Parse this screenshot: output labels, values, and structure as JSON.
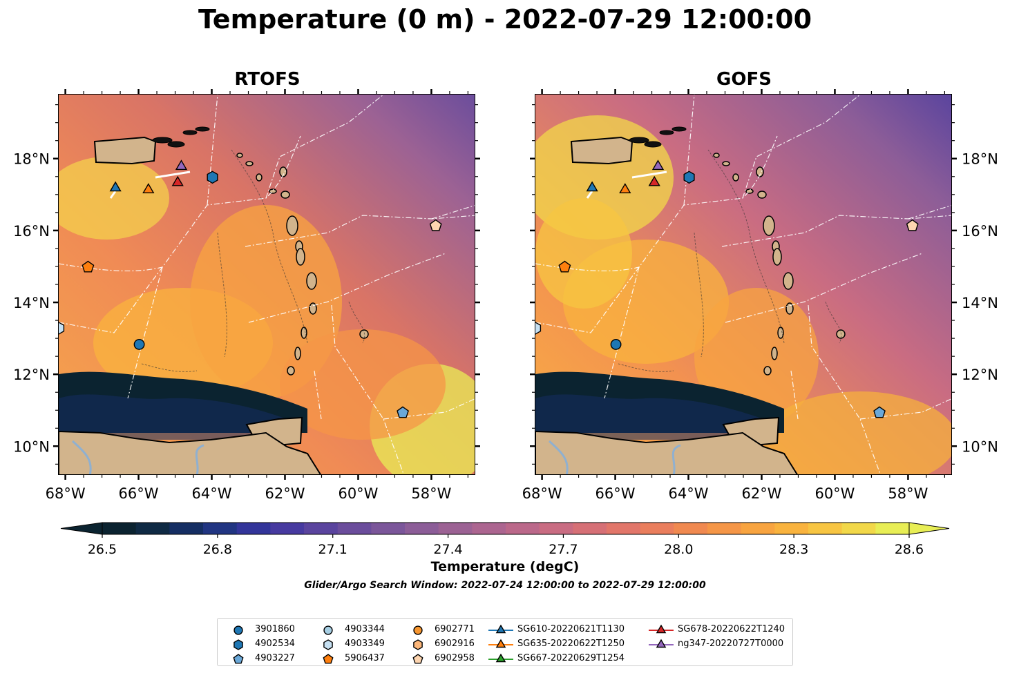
{
  "title": "Temperature (0 m) - 2022-07-29 12:00:00",
  "panels": [
    {
      "title": "RTOFS"
    },
    {
      "title": "GOFS"
    }
  ],
  "axes": {
    "lon_ticks": [
      "68°W",
      "66°W",
      "64°W",
      "62°W",
      "60°W",
      "58°W"
    ],
    "lat_ticks": [
      "10°N",
      "12°N",
      "14°N",
      "16°N",
      "18°N"
    ]
  },
  "colorbar": {
    "ticks": [
      "26.5",
      "26.8",
      "27.1",
      "27.4",
      "27.7",
      "28.0",
      "28.3",
      "28.6"
    ],
    "label": "Temperature (degC)",
    "subtitle": "Glider/Argo Search Window: 2022-07-24 12:00:00 to 2022-07-29 12:00:00",
    "colors": [
      "#0b2330",
      "#0f2a44",
      "#152e63",
      "#213582",
      "#33359a",
      "#473aa0",
      "#5a449e",
      "#6b4d9c",
      "#7b569a",
      "#8c5d98",
      "#9c6294",
      "#ac6590",
      "#bb688a",
      "#c96c82",
      "#d67076",
      "#e2766a",
      "#ea7e5d",
      "#f08950",
      "#f59647",
      "#f8a440",
      "#f9b33e",
      "#f7c542",
      "#f2d849",
      "#e8ee55"
    ]
  },
  "legend": [
    {
      "label": "3901860",
      "marker": "circle",
      "color": "#1f77b4"
    },
    {
      "label": "4902534",
      "marker": "hexagon",
      "color": "#1f77b4"
    },
    {
      "label": "4903227",
      "marker": "pentagon",
      "color": "#6aa8d8"
    },
    {
      "label": "4903344",
      "marker": "circle",
      "color": "#a6cee3"
    },
    {
      "label": "4903349",
      "marker": "hexagon",
      "color": "#c6e0f2"
    },
    {
      "label": "5906437",
      "marker": "pentagon",
      "color": "#ff7f0e"
    },
    {
      "label": "6902771",
      "marker": "circle",
      "color": "#f7962f"
    },
    {
      "label": "6902916",
      "marker": "hexagon",
      "color": "#fdb77a"
    },
    {
      "label": "6902958",
      "marker": "pentagon",
      "color": "#fdd5b0"
    },
    {
      "label": "SG610-20220621T1130",
      "marker": "triangle",
      "color": "#1f77b4"
    },
    {
      "label": "SG635-20220622T1250",
      "marker": "triangle",
      "color": "#ff7f0e"
    },
    {
      "label": "SG667-20220629T1254",
      "marker": "triangle",
      "color": "#2ca02c"
    },
    {
      "label": "SG678-20220622T1240",
      "marker": "triangle",
      "color": "#d62728"
    },
    {
      "label": "ng347-20220727T0000",
      "marker": "triangle",
      "color": "#9467bd"
    }
  ],
  "observations": [
    {
      "panel": 0,
      "id": "3901860",
      "lon": -66.0,
      "lat": 12.85,
      "marker": "circle",
      "color": "#1f77b4"
    },
    {
      "panel": 0,
      "id": "4902534",
      "lon": -64.0,
      "lat": 17.5,
      "marker": "hexagon",
      "color": "#1f77b4"
    },
    {
      "panel": 0,
      "id": "4903227",
      "lon": -58.8,
      "lat": 10.95,
      "marker": "pentagon",
      "color": "#6aa8d8"
    },
    {
      "panel": 0,
      "id": "4903349",
      "lon": -68.2,
      "lat": 13.3,
      "marker": "hexagon",
      "color": "#c6e0f2"
    },
    {
      "panel": 0,
      "id": "5906437",
      "lon": -67.4,
      "lat": 15.0,
      "marker": "pentagon",
      "color": "#ff7f0e"
    },
    {
      "panel": 0,
      "id": "6902958",
      "lon": -57.9,
      "lat": 16.15,
      "marker": "pentagon",
      "color": "#fdd5b0"
    },
    {
      "panel": 0,
      "id": "SG610-20220621T1130",
      "lon": -66.65,
      "lat": 17.2,
      "marker": "triangle",
      "color": "#1f77b4"
    },
    {
      "panel": 0,
      "id": "SG635-20220622T1250",
      "lon": -65.75,
      "lat": 17.15,
      "marker": "triangle",
      "color": "#ff7f0e"
    },
    {
      "panel": 0,
      "id": "SG678-20220622T1240",
      "lon": -64.95,
      "lat": 17.35,
      "marker": "triangle",
      "color": "#d62728"
    },
    {
      "panel": 0,
      "id": "ng347-20220727T0000",
      "lon": -64.85,
      "lat": 17.8,
      "marker": "triangle",
      "color": "#9467bd"
    },
    {
      "panel": 1,
      "id": "3901860",
      "lon": -66.0,
      "lat": 12.85,
      "marker": "circle",
      "color": "#1f77b4"
    },
    {
      "panel": 1,
      "id": "4902534",
      "lon": -64.0,
      "lat": 17.5,
      "marker": "hexagon",
      "color": "#1f77b4"
    },
    {
      "panel": 1,
      "id": "4903227",
      "lon": -58.8,
      "lat": 10.95,
      "marker": "pentagon",
      "color": "#6aa8d8"
    },
    {
      "panel": 1,
      "id": "4903349",
      "lon": -68.2,
      "lat": 13.3,
      "marker": "hexagon",
      "color": "#c6e0f2"
    },
    {
      "panel": 1,
      "id": "5906437",
      "lon": -67.4,
      "lat": 15.0,
      "marker": "pentagon",
      "color": "#ff7f0e"
    },
    {
      "panel": 1,
      "id": "6902958",
      "lon": -57.9,
      "lat": 16.15,
      "marker": "pentagon",
      "color": "#fdd5b0"
    },
    {
      "panel": 1,
      "id": "SG610-20220621T1130",
      "lon": -66.65,
      "lat": 17.2,
      "marker": "triangle",
      "color": "#1f77b4"
    },
    {
      "panel": 1,
      "id": "SG635-20220622T1250",
      "lon": -65.75,
      "lat": 17.15,
      "marker": "triangle",
      "color": "#ff7f0e"
    },
    {
      "panel": 1,
      "id": "SG678-20220622T1240",
      "lon": -64.95,
      "lat": 17.35,
      "marker": "triangle",
      "color": "#d62728"
    },
    {
      "panel": 1,
      "id": "ng347-20220727T0000",
      "lon": -64.85,
      "lat": 17.8,
      "marker": "triangle",
      "color": "#9467bd"
    }
  ],
  "map_extent": {
    "lon": [
      -68.2,
      -56.8
    ],
    "lat": [
      9.2,
      19.8
    ]
  },
  "land_color": "#d2b48c"
}
